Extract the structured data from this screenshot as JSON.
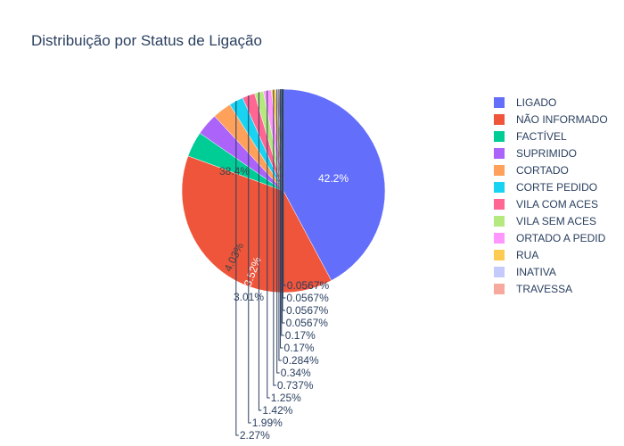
{
  "chart_data": {
    "type": "pie",
    "title": "Distribuição por Status de Ligação",
    "legend_position": "right",
    "slices": [
      {
        "label": "LIGADO",
        "value": 42.2,
        "display": "42.2%",
        "color": "#636efa"
      },
      {
        "label": "NÃO INFORMADO",
        "value": 38.4,
        "display": "38.4%",
        "color": "#EF553B"
      },
      {
        "label": "FACTÍVEL",
        "value": 4.03,
        "display": "4.03%",
        "color": "#00cc96"
      },
      {
        "label": "SUPRIMIDO",
        "value": 3.52,
        "display": "3.52%",
        "color": "#ab63fa"
      },
      {
        "label": "CORTADO",
        "value": 3.01,
        "display": "3.01%",
        "color": "#FFA15A"
      },
      {
        "label": "CORTE PEDIDO",
        "value": 2.27,
        "display": "2.27%",
        "color": "#19d3f3"
      },
      {
        "label": "VILA COM ACES",
        "value": 1.99,
        "display": "1.99%",
        "color": "#FF6692"
      },
      {
        "label": "VILA SEM ACES",
        "value": 1.42,
        "display": "1.42%",
        "color": "#B6E880"
      },
      {
        "label": "ORTADO A PEDID",
        "value": 1.25,
        "display": "1.25%",
        "color": "#FF97FF"
      },
      {
        "label": "RUA",
        "value": 0.737,
        "display": "0.737%",
        "color": "#FECB52"
      },
      {
        "label": "INATIVA",
        "value": 0.34,
        "display": "0.34%",
        "color": "#c5cafc"
      },
      {
        "label": "TRAVESSA",
        "value": 0.284,
        "display": "0.284%",
        "color": "#f6a99c"
      },
      {
        "label": "",
        "value": 0.17,
        "display": "0.17%",
        "color": "#80e5cc"
      },
      {
        "label": "",
        "value": 0.17,
        "display": "0.17%",
        "color": "#d5b1fc"
      },
      {
        "label": "",
        "value": 0.0567,
        "display": "0.0567%",
        "color": "#ffd0ac"
      },
      {
        "label": "",
        "value": 0.0567,
        "display": "0.0567%",
        "color": "#8ce9f9"
      },
      {
        "label": "",
        "value": 0.0567,
        "display": "0.0567%",
        "color": "#ffb2c8"
      },
      {
        "label": "",
        "value": 0.0567,
        "display": "0.0567%",
        "color": "#daf3bf"
      }
    ],
    "legend_entries": [
      "LIGADO",
      "NÃO INFORMADO",
      "FACTÍVEL",
      "SUPRIMIDO",
      "CORTADO",
      "CORTE PEDIDO",
      "VILA COM ACES",
      "VILA SEM ACES",
      "ORTADO A PEDID",
      "RUA",
      "INATIVA",
      "TRAVESSA"
    ]
  }
}
